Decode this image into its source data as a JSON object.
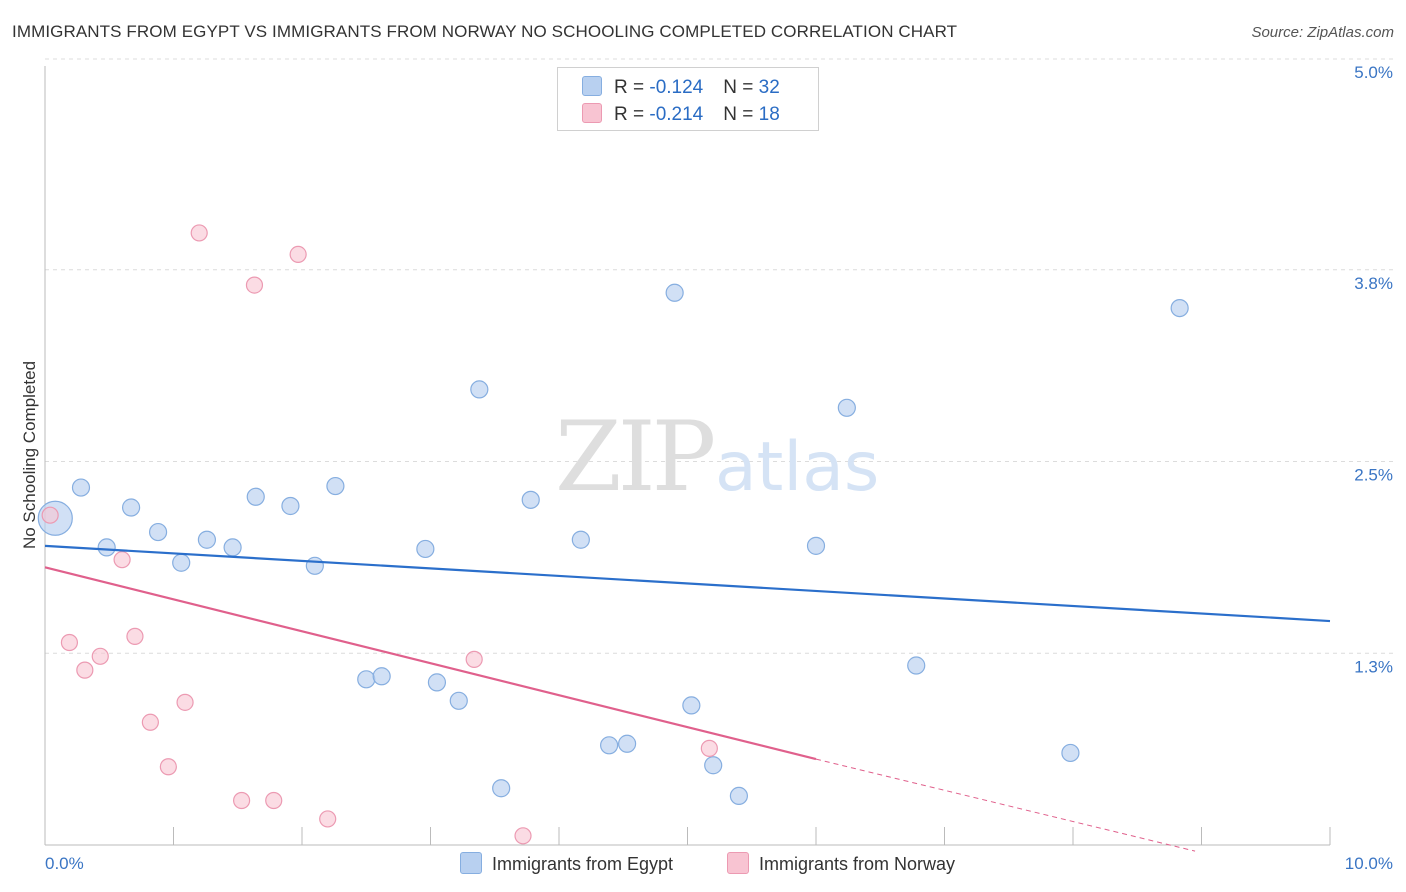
{
  "title": "IMMIGRANTS FROM EGYPT VS IMMIGRANTS FROM NORWAY NO SCHOOLING COMPLETED CORRELATION CHART",
  "source": "Source: ZipAtlas.com",
  "watermark": {
    "zip": "ZIP",
    "atlas": "atlas"
  },
  "legend": {
    "egypt": {
      "r_label": "R = ",
      "r_value": "-0.124",
      "n_label": "N = ",
      "n_value": "32"
    },
    "norway": {
      "r_label": "R = ",
      "r_value": "-0.214",
      "n_label": "N = ",
      "n_value": "18"
    }
  },
  "bottom_legend": {
    "egypt": "Immigrants from Egypt",
    "norway": "Immigrants from Norway"
  },
  "colors": {
    "egypt_fill": "#b8d0f0",
    "egypt_stroke": "#86aee0",
    "egypt_line": "#2b6fcb",
    "norway_fill": "#f8c4d2",
    "norway_stroke": "#ec9ab2",
    "norway_line": "#e0608c",
    "axis_text": "#3a75c4"
  },
  "chart_data": {
    "type": "scatter",
    "title": "IMMIGRANTS FROM EGYPT VS IMMIGRANTS FROM NORWAY NO SCHOOLING COMPLETED CORRELATION CHART",
    "xlabel": "",
    "ylabel": "No Schooling Completed",
    "xlim": [
      0,
      10
    ],
    "ylim": [
      0,
      5.0
    ],
    "x_tick_labels": [
      "0.0%",
      "10.0%"
    ],
    "y_ticks": [
      {
        "value": 5.0,
        "label": "5.0%"
      },
      {
        "value": 3.75,
        "label": "3.8%"
      },
      {
        "value": 2.5,
        "label": "2.5%"
      },
      {
        "value": 1.25,
        "label": "1.3%"
      }
    ],
    "series": [
      {
        "name": "Immigrants from Egypt",
        "points": [
          {
            "x": 0.08,
            "y": 2.13,
            "big": true
          },
          {
            "x": 0.28,
            "y": 2.33
          },
          {
            "x": 0.48,
            "y": 1.94
          },
          {
            "x": 0.67,
            "y": 2.2
          },
          {
            "x": 0.88,
            "y": 2.04
          },
          {
            "x": 1.06,
            "y": 1.84
          },
          {
            "x": 1.26,
            "y": 1.99
          },
          {
            "x": 1.46,
            "y": 1.94
          },
          {
            "x": 1.64,
            "y": 2.27
          },
          {
            "x": 1.91,
            "y": 2.21
          },
          {
            "x": 2.1,
            "y": 1.82
          },
          {
            "x": 2.26,
            "y": 2.34
          },
          {
            "x": 2.5,
            "y": 1.08
          },
          {
            "x": 2.62,
            "y": 1.1
          },
          {
            "x": 2.96,
            "y": 1.93
          },
          {
            "x": 3.05,
            "y": 1.06
          },
          {
            "x": 3.22,
            "y": 0.94
          },
          {
            "x": 3.38,
            "y": 2.97
          },
          {
            "x": 3.55,
            "y": 0.37
          },
          {
            "x": 3.78,
            "y": 2.25
          },
          {
            "x": 4.17,
            "y": 1.99
          },
          {
            "x": 4.39,
            "y": 0.65
          },
          {
            "x": 4.53,
            "y": 0.66
          },
          {
            "x": 4.9,
            "y": 3.6
          },
          {
            "x": 5.03,
            "y": 0.91
          },
          {
            "x": 5.2,
            "y": 0.52
          },
          {
            "x": 5.4,
            "y": 0.32
          },
          {
            "x": 6.0,
            "y": 1.95
          },
          {
            "x": 6.24,
            "y": 2.85
          },
          {
            "x": 6.78,
            "y": 1.17
          },
          {
            "x": 7.98,
            "y": 0.6
          },
          {
            "x": 8.83,
            "y": 3.5
          }
        ],
        "trend": {
          "x": [
            0.0,
            10.0
          ],
          "y": [
            1.95,
            1.46
          ]
        }
      },
      {
        "name": "Immigrants from Norway",
        "points": [
          {
            "x": 0.04,
            "y": 2.15
          },
          {
            "x": 0.19,
            "y": 1.32
          },
          {
            "x": 0.31,
            "y": 1.14
          },
          {
            "x": 0.43,
            "y": 1.23
          },
          {
            "x": 0.6,
            "y": 1.86
          },
          {
            "x": 0.7,
            "y": 1.36
          },
          {
            "x": 0.82,
            "y": 0.8
          },
          {
            "x": 0.96,
            "y": 0.51
          },
          {
            "x": 1.09,
            "y": 0.93
          },
          {
            "x": 1.2,
            "y": 3.99
          },
          {
            "x": 1.53,
            "y": 0.29
          },
          {
            "x": 1.63,
            "y": 3.65
          },
          {
            "x": 1.78,
            "y": 0.29
          },
          {
            "x": 1.97,
            "y": 3.85
          },
          {
            "x": 2.2,
            "y": 0.17
          },
          {
            "x": 3.34,
            "y": 1.21
          },
          {
            "x": 3.72,
            "y": 0.06
          },
          {
            "x": 5.17,
            "y": 0.63
          }
        ],
        "trend": {
          "x": [
            0.0,
            6.0
          ],
          "y": [
            1.81,
            0.56
          ]
        },
        "trend_dashed": {
          "x": [
            6.0,
            8.95
          ],
          "y": [
            0.56,
            -0.04
          ]
        }
      }
    ]
  }
}
